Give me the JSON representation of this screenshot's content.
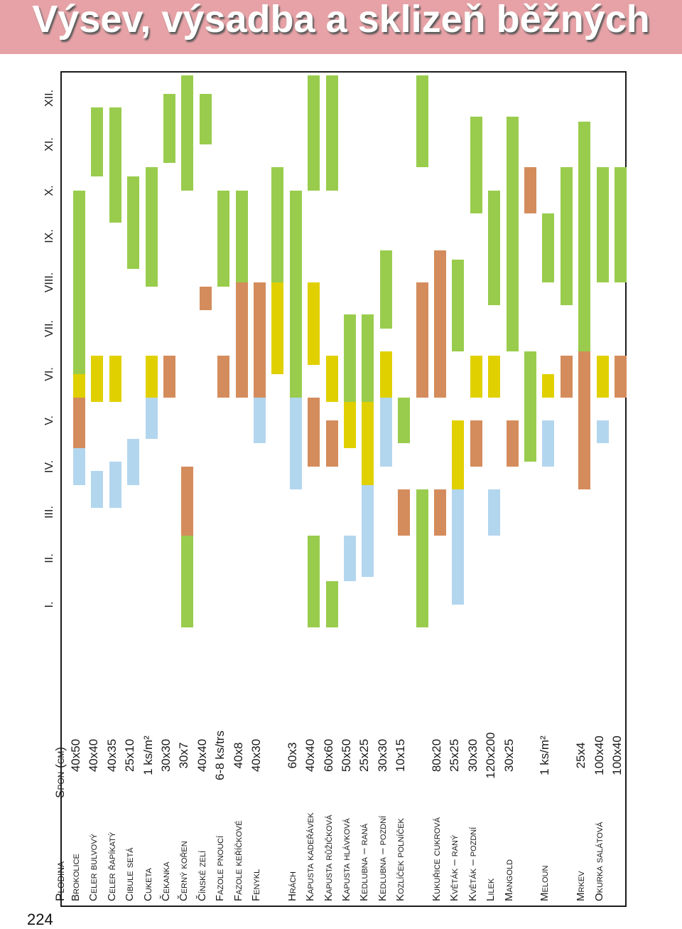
{
  "title": "Výsev, výsadba a sklizeň běžných",
  "page_number": "224",
  "header": {
    "crop": "Plodina",
    "spacing": "Spon (cm)"
  },
  "months": [
    "I.",
    "II.",
    "III.",
    "IV.",
    "V.",
    "VI.",
    "VII.",
    "VIII.",
    "IX.",
    "X.",
    "XI.",
    "XII."
  ],
  "colors": {
    "blue": "#b3d6ef",
    "brown": "#d48c5c",
    "yellow": "#e1d000",
    "green": "#99cc4d"
  },
  "rows": [
    {
      "name": "Brokolice",
      "spacing": "40x50",
      "bars": [
        {
          "color": "blue",
          "from": 3.1,
          "to": 3.9
        },
        {
          "color": "brown",
          "from": 3.9,
          "to": 5.0
        },
        {
          "color": "yellow",
          "from": 5.0,
          "to": 5.5
        },
        {
          "color": "green",
          "from": 5.5,
          "to": 9.5
        }
      ]
    },
    {
      "name": "Celer bulvový",
      "spacing": "40x40",
      "bars": [
        {
          "color": "blue",
          "from": 2.6,
          "to": 3.4
        },
        {
          "color": "yellow",
          "from": 4.9,
          "to": 5.9
        },
        {
          "color": "green",
          "from": 9.8,
          "to": 11.3
        }
      ]
    },
    {
      "name": "Celer řapíkatý",
      "spacing": "40x35",
      "bars": [
        {
          "color": "blue",
          "from": 2.6,
          "to": 3.6
        },
        {
          "color": "yellow",
          "from": 4.9,
          "to": 5.9
        },
        {
          "color": "green",
          "from": 8.8,
          "to": 11.3
        }
      ]
    },
    {
      "name": "Cibule setá",
      "spacing": "25x10",
      "bars": [
        {
          "color": "blue",
          "from": 3.1,
          "to": 4.1
        },
        {
          "color": "green",
          "from": 7.8,
          "to": 9.8
        }
      ]
    },
    {
      "name": "Cuketa",
      "spacing": "1 ks/m²",
      "bars": [
        {
          "color": "blue",
          "from": 4.1,
          "to": 5.0
        },
        {
          "color": "yellow",
          "from": 5.0,
          "to": 5.9
        },
        {
          "color": "green",
          "from": 7.4,
          "to": 10.0
        }
      ]
    },
    {
      "name": "Čekanka",
      "spacing": "30x30",
      "bars": [
        {
          "color": "brown",
          "from": 5.0,
          "to": 5.9
        },
        {
          "color": "green",
          "from": 10.1,
          "to": 11.6
        }
      ]
    },
    {
      "name": "Černý kořen",
      "spacing": "30x7",
      "bars": [
        {
          "color": "green",
          "from": 0.0,
          "to": 2.0
        },
        {
          "color": "brown",
          "from": 2.0,
          "to": 3.5
        },
        {
          "color": "green",
          "from": 9.5,
          "to": 12.0
        }
      ]
    },
    {
      "name": "Čínské zelí",
      "spacing": "40x40",
      "bars": [
        {
          "color": "brown",
          "from": 6.9,
          "to": 7.4
        },
        {
          "color": "green",
          "from": 10.5,
          "to": 11.6
        }
      ]
    },
    {
      "name": "Fazole pnoucí",
      "spacing": "6-8 ks/trs",
      "bars": [
        {
          "color": "brown",
          "from": 5.0,
          "to": 5.9
        },
        {
          "color": "green",
          "from": 7.4,
          "to": 9.5
        }
      ]
    },
    {
      "name": "Fazole keříčkové",
      "spacing": "40x8",
      "bars": [
        {
          "color": "brown",
          "from": 5.0,
          "to": 7.5
        },
        {
          "color": "green",
          "from": 7.5,
          "to": 9.5
        }
      ]
    },
    {
      "name": "Fenykl",
      "spacing": "40x30",
      "bars": [
        {
          "color": "blue",
          "from": 4.0,
          "to": 5.0
        },
        {
          "color": "brown",
          "from": 5.0,
          "to": 7.5
        }
      ]
    },
    {
      "name": "",
      "spacing": "",
      "bars": [
        {
          "color": "yellow",
          "from": 5.5,
          "to": 7.5
        },
        {
          "color": "green",
          "from": 7.5,
          "to": 10.0
        }
      ]
    },
    {
      "name": "Hrách",
      "spacing": "60x3",
      "bars": [
        {
          "color": "blue",
          "from": 3.0,
          "to": 5.0
        },
        {
          "color": "green",
          "from": 5.0,
          "to": 9.5
        }
      ]
    },
    {
      "name": "Kapusta kadeřávek",
      "spacing": "40x40",
      "bars": [
        {
          "color": "green",
          "from": 0.0,
          "to": 2.0
        },
        {
          "color": "brown",
          "from": 3.5,
          "to": 5.0
        },
        {
          "color": "yellow",
          "from": 5.7,
          "to": 7.5
        },
        {
          "color": "green",
          "from": 9.5,
          "to": 12.0
        }
      ]
    },
    {
      "name": "Kapusta růžičková",
      "spacing": "60x60",
      "bars": [
        {
          "color": "green",
          "from": 0.0,
          "to": 1.0
        },
        {
          "color": "brown",
          "from": 3.5,
          "to": 4.5
        },
        {
          "color": "yellow",
          "from": 4.9,
          "to": 5.9
        },
        {
          "color": "green",
          "from": 9.5,
          "to": 12.0
        }
      ]
    },
    {
      "name": "Kapusta hlávková",
      "spacing": "50x50",
      "bars": [
        {
          "color": "blue",
          "from": 1.0,
          "to": 2.0
        },
        {
          "color": "yellow",
          "from": 3.9,
          "to": 4.9
        },
        {
          "color": "green",
          "from": 4.9,
          "to": 6.8
        }
      ]
    },
    {
      "name": "Kedlubna – raná",
      "spacing": "25x25",
      "bars": [
        {
          "color": "blue",
          "from": 1.1,
          "to": 3.1
        },
        {
          "color": "yellow",
          "from": 3.1,
          "to": 4.9
        },
        {
          "color": "green",
          "from": 4.9,
          "to": 6.8
        }
      ]
    },
    {
      "name": "Kedlubna – pozdní",
      "spacing": "30x30",
      "bars": [
        {
          "color": "blue",
          "from": 3.5,
          "to": 5.0
        },
        {
          "color": "yellow",
          "from": 5.0,
          "to": 6.0
        },
        {
          "color": "green",
          "from": 6.5,
          "to": 8.2
        }
      ]
    },
    {
      "name": "Kozlíček polníček",
      "spacing": "10x15",
      "bars": [
        {
          "color": "brown",
          "from": 2.0,
          "to": 3.0
        },
        {
          "color": "green",
          "from": 4.0,
          "to": 5.0
        }
      ]
    },
    {
      "name": "",
      "spacing": "",
      "bars": [
        {
          "color": "green",
          "from": 0.0,
          "to": 3.0
        },
        {
          "color": "brown",
          "from": 5.0,
          "to": 7.5
        },
        {
          "color": "green",
          "from": 10.0,
          "to": 12.0
        }
      ]
    },
    {
      "name": "Kukuřice cukrová",
      "spacing": "80x20",
      "bars": [
        {
          "color": "brown",
          "from": 2.0,
          "to": 3.0
        },
        {
          "color": "brown",
          "from": 5.0,
          "to": 8.2
        }
      ]
    },
    {
      "name": "Květák – raný",
      "spacing": "25x25",
      "bars": [
        {
          "color": "blue",
          "from": 0.5,
          "to": 3.0
        },
        {
          "color": "yellow",
          "from": 3.0,
          "to": 4.5
        },
        {
          "color": "green",
          "from": 6.0,
          "to": 8.0
        }
      ]
    },
    {
      "name": "Květák – pozdní",
      "spacing": "30x30",
      "bars": [
        {
          "color": "brown",
          "from": 3.5,
          "to": 4.5
        },
        {
          "color": "yellow",
          "from": 5.0,
          "to": 5.9
        },
        {
          "color": "green",
          "from": 9.0,
          "to": 11.1
        }
      ]
    },
    {
      "name": "Lilek",
      "spacing": "120x200",
      "bars": [
        {
          "color": "blue",
          "from": 2.0,
          "to": 3.0
        },
        {
          "color": "yellow",
          "from": 5.0,
          "to": 5.9
        },
        {
          "color": "green",
          "from": 7.0,
          "to": 9.5
        }
      ]
    },
    {
      "name": "Mangold",
      "spacing": "30x25",
      "bars": [
        {
          "color": "brown",
          "from": 3.5,
          "to": 4.5
        },
        {
          "color": "green",
          "from": 6.0,
          "to": 11.1
        }
      ]
    },
    {
      "name": "",
      "spacing": "",
      "bars": [
        {
          "color": "green",
          "from": 3.6,
          "to": 6.0
        },
        {
          "color": "brown",
          "from": 9.0,
          "to": 10.0
        }
      ]
    },
    {
      "name": "Meloun",
      "spacing": "1 ks/m²",
      "bars": [
        {
          "color": "blue",
          "from": 3.5,
          "to": 4.5
        },
        {
          "color": "yellow",
          "from": 5.0,
          "to": 5.5
        },
        {
          "color": "green",
          "from": 7.5,
          "to": 9.0
        }
      ]
    },
    {
      "name": "",
      "spacing": "",
      "bars": [
        {
          "color": "brown",
          "from": 5.0,
          "to": 5.9
        },
        {
          "color": "green",
          "from": 7.0,
          "to": 10.0
        }
      ]
    },
    {
      "name": "Mrkev",
      "spacing": "25x4",
      "bars": [
        {
          "color": "brown",
          "from": 3.0,
          "to": 6.0
        },
        {
          "color": "green",
          "from": 6.0,
          "to": 11.0
        }
      ]
    },
    {
      "name": "Okurka salátová",
      "spacing": "100x40",
      "bars": [
        {
          "color": "blue",
          "from": 4.0,
          "to": 4.5
        },
        {
          "color": "yellow",
          "from": 5.0,
          "to": 5.9
        },
        {
          "color": "green",
          "from": 7.5,
          "to": 10.0
        }
      ]
    },
    {
      "name": "",
      "spacing": "100x40",
      "bars": [
        {
          "color": "brown",
          "from": 5.0,
          "to": 5.9
        },
        {
          "color": "green",
          "from": 7.5,
          "to": 10.0
        }
      ]
    }
  ]
}
